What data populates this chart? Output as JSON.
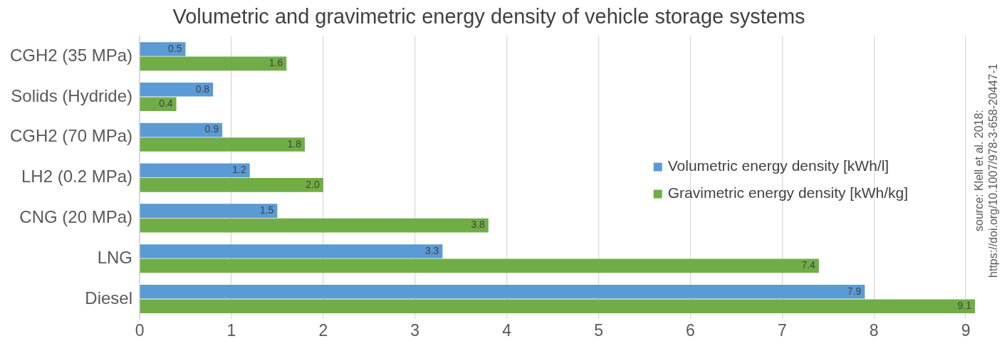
{
  "chart_data": {
    "type": "bar",
    "orientation": "horizontal",
    "title": "Volumetric and gravimetric energy density of vehicle storage systems",
    "categories": [
      "CGH2 (35 MPa)",
      "Solids (Hydride)",
      "CGH2 (70 MPa)",
      "LH2 (0.2 MPa)",
      "CNG (20 MPa)",
      "LNG",
      "Diesel"
    ],
    "series": [
      {
        "name": "Volumetric energy density [kWh/l]",
        "color": "#5b9bd5",
        "values": [
          0.5,
          0.8,
          0.9,
          1.2,
          1.5,
          3.3,
          7.9
        ],
        "value_labels": [
          "0.5",
          "0.8",
          "0.9",
          "1.2",
          "1.5",
          "3.3",
          "7.9"
        ]
      },
      {
        "name": "Gravimetric energy density [kWh/kg]",
        "color": "#70ad47",
        "values": [
          1.6,
          0.4,
          1.8,
          2.0,
          3.8,
          7.4,
          9.1
        ],
        "value_labels": [
          "1.6",
          "0.4",
          "1.8",
          "2.0",
          "3.8",
          "7.4",
          "9.1"
        ]
      }
    ],
    "xlim": [
      0,
      9.1
    ],
    "xticks": [
      0,
      1,
      2,
      3,
      4,
      5,
      6,
      7,
      8,
      9
    ],
    "grid": "x",
    "legend": "right",
    "annotations": [
      "source: Klell et al. 2018:",
      "https://doi.org/10.1007/978-3-658-20447-1"
    ]
  }
}
